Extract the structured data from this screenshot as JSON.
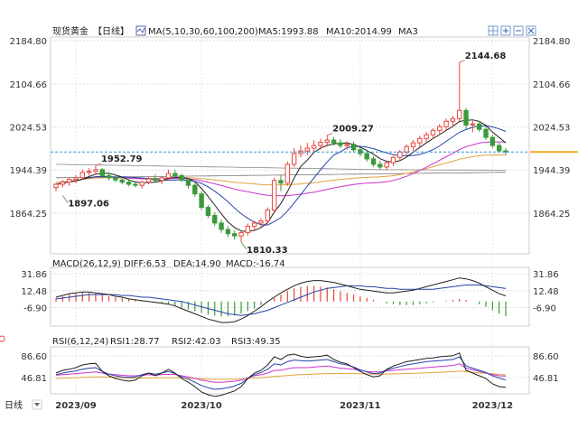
{
  "header": {
    "instrument": "现货黄金",
    "period": "【日线】",
    "ma_label": "MA(5,10,30,60,100,200)",
    "ma5": "MA5:1993.88",
    "ma10": "MA10:2014.99",
    "ma3": "MA3"
  },
  "macd": {
    "title": "MACD(26,12,9)",
    "diff": "DIFF:6.53",
    "dea": "DEA:14.90",
    "macd": "MACD:-16.74"
  },
  "rsi": {
    "title": "RSI(6,12,24)",
    "rsi1": "RSI1:28.77",
    "rsi2": "RSI2:42.03",
    "rsi3": "RSI3:49.35"
  },
  "footer": {
    "period_tag": "日线"
  },
  "toolbar": {
    "icons": [
      "grid-icon",
      "plus-icon",
      "minus-icon",
      "close-icon",
      "settings-icon"
    ]
  },
  "colors": {
    "up": "#e8453c",
    "down": "#3a9a3a",
    "ma5": "#222222",
    "ma10": "#2244aa",
    "ma30": "#cc33cc",
    "ma60": "#e3a23c",
    "ma100": "#888888",
    "ma200": "#777777",
    "current_line": "#3399cc",
    "current_box": "#f5a623"
  },
  "chart_data": {
    "type": "candlestick",
    "price_axis": {
      "ticks": [
        "2184.80",
        "2104.66",
        "2024.53",
        "1944.39",
        "1864.25"
      ],
      "ylim": [
        1864.25,
        2184.8
      ]
    },
    "x_labels": [
      "2023/09",
      "2023/10",
      "2023/11",
      "2023/12"
    ],
    "annotations": [
      {
        "label": "2144.68",
        "value": 2144.68,
        "kind": "high"
      },
      {
        "label": "2009.27",
        "value": 2009.27,
        "kind": "high"
      },
      {
        "label": "1952.79",
        "value": 1952.79,
        "kind": "high"
      },
      {
        "label": "1897.06",
        "value": 1897.06,
        "kind": "low"
      },
      {
        "label": "1810.33",
        "value": 1810.33,
        "kind": "low"
      }
    ],
    "current_price": 1978,
    "candles": [
      [
        1912,
        1920,
        1905,
        1918
      ],
      [
        1918,
        1926,
        1912,
        1922
      ],
      [
        1922,
        1930,
        1915,
        1927
      ],
      [
        1927,
        1935,
        1920,
        1930
      ],
      [
        1930,
        1945,
        1926,
        1940
      ],
      [
        1940,
        1948,
        1934,
        1942
      ],
      [
        1942,
        1952.79,
        1936,
        1945
      ],
      [
        1945,
        1948,
        1930,
        1934
      ],
      [
        1934,
        1940,
        1925,
        1930
      ],
      [
        1930,
        1936,
        1922,
        1926
      ],
      [
        1926,
        1932,
        1918,
        1922
      ],
      [
        1922,
        1928,
        1914,
        1918
      ],
      [
        1918,
        1924,
        1912,
        1916
      ],
      [
        1916,
        1925,
        1910,
        1922
      ],
      [
        1922,
        1932,
        1918,
        1928
      ],
      [
        1928,
        1936,
        1922,
        1925
      ],
      [
        1925,
        1932,
        1918,
        1930
      ],
      [
        1930,
        1945,
        1925,
        1938
      ],
      [
        1938,
        1945,
        1930,
        1934
      ],
      [
        1934,
        1938,
        1922,
        1926
      ],
      [
        1926,
        1930,
        1910,
        1916
      ],
      [
        1916,
        1920,
        1895,
        1900
      ],
      [
        1900,
        1905,
        1870,
        1875
      ],
      [
        1875,
        1880,
        1855,
        1860
      ],
      [
        1860,
        1866,
        1840,
        1846
      ],
      [
        1846,
        1852,
        1828,
        1834
      ],
      [
        1834,
        1840,
        1820,
        1826
      ],
      [
        1826,
        1832,
        1815,
        1822
      ],
      [
        1822,
        1830,
        1810.33,
        1828
      ],
      [
        1828,
        1845,
        1822,
        1840
      ],
      [
        1840,
        1850,
        1832,
        1846
      ],
      [
        1846,
        1855,
        1838,
        1850
      ],
      [
        1850,
        1875,
        1845,
        1870
      ],
      [
        1870,
        1930,
        1865,
        1925
      ],
      [
        1925,
        1935,
        1905,
        1920
      ],
      [
        1920,
        1960,
        1915,
        1955
      ],
      [
        1955,
        1985,
        1950,
        1975
      ],
      [
        1975,
        1990,
        1968,
        1980
      ],
      [
        1980,
        1995,
        1972,
        1985
      ],
      [
        1985,
        2000,
        1978,
        1990
      ],
      [
        1990,
        2003,
        1982,
        1996
      ],
      [
        1996,
        2009.27,
        1988,
        2000
      ],
      [
        2000,
        2006,
        1990,
        1995
      ],
      [
        1995,
        2002,
        1985,
        1990
      ],
      [
        1990,
        1998,
        1982,
        1992
      ],
      [
        1992,
        1997,
        1978,
        1982
      ],
      [
        1982,
        1988,
        1970,
        1975
      ],
      [
        1975,
        1980,
        1960,
        1965
      ],
      [
        1965,
        1970,
        1950,
        1955
      ],
      [
        1955,
        1962,
        1945,
        1950
      ],
      [
        1950,
        1960,
        1944,
        1958
      ],
      [
        1958,
        1970,
        1952,
        1968
      ],
      [
        1968,
        1982,
        1962,
        1978
      ],
      [
        1978,
        1992,
        1972,
        1988
      ],
      [
        1988,
        2000,
        1980,
        1995
      ],
      [
        1995,
        2008,
        1988,
        2003
      ],
      [
        2003,
        2015,
        1995,
        2010
      ],
      [
        2010,
        2022,
        2002,
        2018
      ],
      [
        2018,
        2030,
        2010,
        2025
      ],
      [
        2025,
        2040,
        2018,
        2035
      ],
      [
        2035,
        2045,
        2025,
        2040
      ],
      [
        2040,
        2144.68,
        2035,
        2055
      ],
      [
        2055,
        2060,
        2020,
        2028
      ],
      [
        2028,
        2036,
        2015,
        2030
      ],
      [
        2030,
        2036,
        2015,
        2020
      ],
      [
        2020,
        2025,
        2000,
        2005
      ],
      [
        2005,
        2010,
        1985,
        1990
      ],
      [
        1990,
        1995,
        1978,
        1980
      ],
      [
        1980,
        1985,
        1972,
        1978
      ]
    ],
    "macd_axis": {
      "ticks": [
        "31.86",
        "12.48",
        "-6.90"
      ]
    },
    "macd_hist": [
      4,
      6,
      8,
      9,
      10,
      10,
      9,
      8,
      6,
      5,
      4,
      3,
      2,
      1,
      0,
      -1,
      -2,
      -3,
      -5,
      -7,
      -9,
      -11,
      -13,
      -15,
      -16,
      -17,
      -17,
      -16,
      -14,
      -11,
      -8,
      -4,
      0,
      4,
      8,
      12,
      15,
      17,
      18,
      18,
      17,
      16,
      14,
      12,
      10,
      8,
      6,
      4,
      2,
      0,
      -2,
      -3,
      -4,
      -4,
      -4,
      -3,
      -2,
      -1,
      0,
      1,
      2,
      3,
      2,
      0,
      -3,
      -6,
      -10,
      -14,
      -16.74
    ],
    "macd_diff": [
      5,
      7,
      9,
      10,
      11,
      11,
      10,
      9,
      8,
      6,
      5,
      3,
      2,
      1,
      0,
      -1,
      -2,
      -3,
      -5,
      -8,
      -11,
      -14,
      -17,
      -20,
      -22,
      -24,
      -24,
      -23,
      -20,
      -16,
      -11,
      -6,
      0,
      5,
      10,
      14,
      18,
      21,
      23,
      24,
      24,
      23,
      22,
      20,
      18,
      16,
      14,
      13,
      12,
      11,
      10,
      10,
      11,
      12,
      13,
      15,
      17,
      19,
      21,
      23,
      25,
      27,
      26,
      24,
      21,
      17,
      13,
      9,
      6.53
    ],
    "macd_dea": [
      3,
      4,
      5,
      6,
      7,
      8,
      8,
      8,
      8,
      8,
      7,
      7,
      6,
      5,
      5,
      4,
      3,
      2,
      1,
      0,
      -2,
      -4,
      -6,
      -8,
      -10,
      -12,
      -14,
      -15,
      -16,
      -15,
      -14,
      -12,
      -10,
      -7,
      -4,
      -1,
      2,
      5,
      8,
      11,
      13,
      15,
      16,
      17,
      18,
      18,
      18,
      17,
      17,
      16,
      15,
      15,
      14,
      14,
      14,
      14,
      14,
      14,
      15,
      16,
      17,
      18,
      19,
      19,
      19,
      18,
      17,
      16,
      14.9
    ],
    "rsi_axis": {
      "ticks": [
        "86.60",
        "46.81"
      ]
    },
    "rsi1": [
      55,
      60,
      62,
      65,
      70,
      72,
      73,
      58,
      50,
      45,
      42,
      40,
      42,
      50,
      55,
      50,
      55,
      62,
      55,
      45,
      38,
      30,
      20,
      15,
      12,
      14,
      18,
      22,
      30,
      45,
      55,
      60,
      70,
      85,
      80,
      88,
      90,
      86,
      84,
      85,
      86,
      88,
      80,
      75,
      72,
      65,
      58,
      52,
      48,
      50,
      62,
      68,
      72,
      76,
      78,
      80,
      82,
      83,
      85,
      86,
      87,
      92,
      60,
      55,
      50,
      45,
      35,
      30,
      28.77
    ],
    "rsi2": [
      52,
      55,
      57,
      59,
      62,
      64,
      65,
      58,
      53,
      50,
      48,
      47,
      48,
      52,
      55,
      53,
      55,
      58,
      54,
      48,
      44,
      38,
      32,
      28,
      25,
      26,
      28,
      31,
      36,
      45,
      52,
      56,
      62,
      72,
      70,
      76,
      79,
      78,
      77,
      78,
      79,
      80,
      76,
      72,
      70,
      66,
      61,
      57,
      54,
      55,
      61,
      64,
      67,
      70,
      72,
      74,
      76,
      77,
      78,
      79,
      80,
      85,
      68,
      64,
      60,
      56,
      50,
      46,
      42.03
    ],
    "rsi3": [
      51,
      52,
      53,
      54,
      55,
      56,
      57,
      55,
      53,
      52,
      51,
      50,
      50,
      51,
      52,
      51,
      52,
      53,
      52,
      50,
      48,
      45,
      42,
      40,
      38,
      38,
      39,
      40,
      42,
      46,
      50,
      52,
      55,
      60,
      60,
      63,
      65,
      65,
      65,
      66,
      67,
      68,
      66,
      64,
      63,
      62,
      60,
      58,
      57,
      57,
      59,
      60,
      61,
      62,
      63,
      64,
      65,
      66,
      67,
      68,
      69,
      72,
      64,
      61,
      58,
      55,
      52,
      50,
      49.35
    ],
    "rsi_line4": [
      45,
      45.5,
      46,
      46.5,
      47,
      47.5,
      48,
      48,
      47.5,
      47,
      46.5,
      46,
      45.8,
      45.8,
      46,
      46,
      46.2,
      46.5,
      46.5,
      46,
      45.5,
      45,
      44.5,
      44,
      43.5,
      43.5,
      43.5,
      43.8,
      44.2,
      45,
      45.8,
      46.5,
      47.5,
      49,
      49.5,
      50.5,
      51.5,
      52,
      52.5,
      53,
      53.5,
      54,
      54,
      54,
      54,
      54,
      53.8,
      53.5,
      53.2,
      53,
      53.2,
      53.5,
      53.8,
      54.2,
      54.5,
      55,
      55.5,
      56,
      56.5,
      57,
      57.5,
      58.5,
      57.5,
      56.5,
      55.5,
      54.5,
      53.5,
      52.5,
      51.5
    ]
  }
}
